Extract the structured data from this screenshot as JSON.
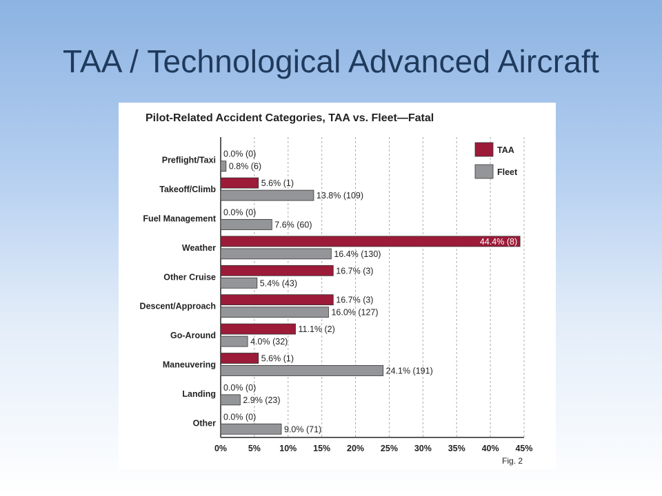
{
  "slide": {
    "title": "TAA / Technological Advanced Aircraft"
  },
  "chart_data": {
    "type": "bar",
    "orientation": "horizontal",
    "title": "Pilot-Related Accident Categories, TAA vs. Fleet—Fatal",
    "figure_label": "Fig. 2",
    "categories": [
      "Preflight/Taxi",
      "Takeoff/Climb",
      "Fuel Management",
      "Weather",
      "Other Cruise",
      "Descent/Approach",
      "Go-Around",
      "Maneuvering",
      "Landing",
      "Other"
    ],
    "series": [
      {
        "name": "TAA",
        "color": "#9b1b38",
        "values": [
          0.0,
          5.6,
          0.0,
          44.4,
          16.7,
          16.7,
          11.1,
          5.6,
          0.0,
          0.0
        ],
        "labels": [
          "0.0% (0)",
          "5.6% (1)",
          "0.0% (0)",
          "44.4% (8)",
          "16.7% (3)",
          "16.7% (3)",
          "11.1% (2)",
          "5.6% (1)",
          "0.0% (0)",
          "0.0% (0)"
        ]
      },
      {
        "name": "Fleet",
        "color": "#949598",
        "values": [
          0.8,
          13.8,
          7.6,
          16.4,
          5.4,
          16.0,
          4.0,
          24.1,
          2.9,
          9.0
        ],
        "labels": [
          "0.8% (6)",
          "13.8% (109)",
          "7.6% (60)",
          "16.4% (130)",
          "5.4% (43)",
          "16.0% (127)",
          "4.0% (32)",
          "24.1% (191)",
          "2.9% (23)",
          "9.0% (71)"
        ]
      }
    ],
    "xlim": [
      0,
      45
    ],
    "xticks": [
      "0%",
      "5%",
      "10%",
      "15%",
      "20%",
      "25%",
      "30%",
      "35%",
      "40%",
      "45%"
    ],
    "grid": "vertical dashed",
    "legend_position": "top-right"
  }
}
